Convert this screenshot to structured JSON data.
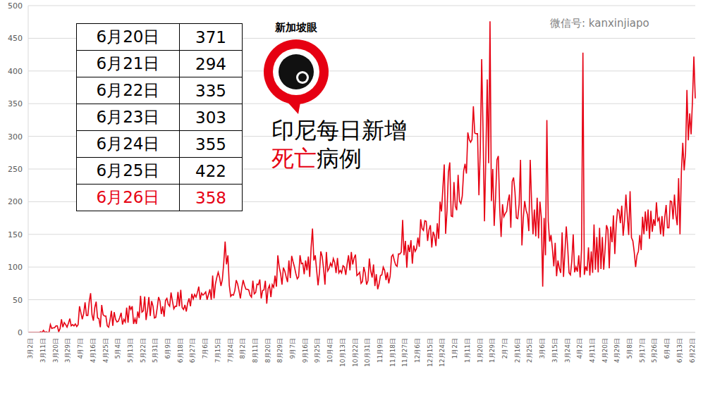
{
  "chart_data": {
    "type": "line",
    "title": [
      "印尼每日新增",
      "死亡",
      "病例"
    ],
    "logo": "新加坡眼",
    "watermark": "微信号: kanxinjiapo",
    "table": {
      "rows": [
        [
          "6月20日",
          371
        ],
        [
          "6月21日",
          294
        ],
        [
          "6月22日",
          335
        ],
        [
          "6月23日",
          303
        ],
        [
          "6月24日",
          355
        ],
        [
          "6月25日",
          422
        ],
        [
          "6月26日",
          358
        ]
      ]
    },
    "color": "#e60012",
    "grid": true,
    "ylim": [
      0,
      500
    ],
    "yticks": [
      0,
      50,
      100,
      150,
      200,
      250,
      300,
      350,
      400,
      450,
      500
    ],
    "categories": [
      "3月2日",
      null,
      null,
      null,
      null,
      null,
      null,
      null,
      null,
      "3月11日",
      null,
      null,
      null,
      null,
      null,
      null,
      null,
      null,
      "3月20日",
      null,
      null,
      null,
      null,
      null,
      null,
      null,
      null,
      "3月29日",
      null,
      null,
      null,
      null,
      null,
      null,
      null,
      null,
      "4月7日",
      null,
      null,
      null,
      null,
      null,
      null,
      null,
      null,
      "4月16日",
      null,
      null,
      null,
      null,
      null,
      null,
      null,
      null,
      "4月25日",
      null,
      null,
      null,
      null,
      null,
      null,
      null,
      null,
      "5月4日",
      null,
      null,
      null,
      null,
      null,
      null,
      null,
      null,
      "5月13日",
      null,
      null,
      null,
      null,
      null,
      null,
      null,
      null,
      "5月22日",
      null,
      null,
      null,
      null,
      null,
      null,
      null,
      null,
      "5月31日",
      null,
      null,
      null,
      null,
      null,
      null,
      null,
      null,
      "6月9日",
      null,
      null,
      null,
      null,
      null,
      null,
      null,
      null,
      "6月18日",
      null,
      null,
      null,
      null,
      null,
      null,
      null,
      null,
      "6月27日",
      null,
      null,
      null,
      null,
      null,
      null,
      null,
      null,
      "7月6日",
      null,
      null,
      null,
      null,
      null,
      null,
      null,
      null,
      "7月15日",
      null,
      null,
      null,
      null,
      null,
      null,
      null,
      null,
      "7月24日",
      null,
      null,
      null,
      null,
      null,
      null,
      null,
      null,
      "8月2日",
      null,
      null,
      null,
      null,
      null,
      null,
      null,
      null,
      "8月11日",
      null,
      null,
      null,
      null,
      null,
      null,
      null,
      null,
      "8月20日",
      null,
      null,
      null,
      null,
      null,
      null,
      null,
      null,
      "8月29日",
      null,
      null,
      null,
      null,
      null,
      null,
      null,
      null,
      "9月7日",
      null,
      null,
      null,
      null,
      null,
      null,
      null,
      null,
      "9月16日",
      null,
      null,
      null,
      null,
      null,
      null,
      null,
      null,
      "9月25日",
      null,
      null,
      null,
      null,
      null,
      null,
      null,
      null,
      "10月4日",
      null,
      null,
      null,
      null,
      null,
      null,
      null,
      null,
      "10月13日",
      null,
      null,
      null,
      null,
      null,
      null,
      null,
      null,
      "10月22日",
      null,
      null,
      null,
      null,
      null,
      null,
      null,
      null,
      "10月31日",
      null,
      null,
      null,
      null,
      null,
      null,
      null,
      null,
      "11月9日",
      null,
      null,
      null,
      null,
      null,
      null,
      null,
      null,
      "11月18日",
      null,
      null,
      null,
      null,
      null,
      null,
      null,
      null,
      "11月27日",
      null,
      null,
      null,
      null,
      null,
      null,
      null,
      null,
      "12月6日",
      null,
      null,
      null,
      null,
      null,
      null,
      null,
      null,
      "12月15日",
      null,
      null,
      null,
      null,
      null,
      null,
      null,
      null,
      "12月24日",
      null,
      null,
      null,
      null,
      null,
      null,
      null,
      null,
      "1月2日",
      null,
      null,
      null,
      null,
      null,
      null,
      null,
      null,
      "1月11日",
      null,
      null,
      null,
      null,
      null,
      null,
      null,
      null,
      "1月20日",
      null,
      null,
      null,
      null,
      null,
      null,
      null,
      null,
      "1月29日",
      null,
      null,
      null,
      null,
      null,
      null,
      null,
      null,
      "2月7日",
      null,
      null,
      null,
      null,
      null,
      null,
      null,
      null,
      "2月16日",
      null,
      null,
      null,
      null,
      null,
      null,
      null,
      null,
      "2月25日",
      null,
      null,
      null,
      null,
      null,
      null,
      null,
      null,
      "3月6日",
      null,
      null,
      null,
      null,
      null,
      null,
      null,
      null,
      "3月15日",
      null,
      null,
      null,
      null,
      null,
      null,
      null,
      null,
      "3月24日",
      null,
      null,
      null,
      null,
      null,
      null,
      null,
      null,
      "4月2日",
      null,
      null,
      null,
      null,
      null,
      null,
      null,
      null,
      "4月11日",
      null,
      null,
      null,
      null,
      null,
      null,
      null,
      null,
      "4月20日",
      null,
      null,
      null,
      null,
      null,
      null,
      null,
      null,
      "4月29日",
      null,
      null,
      null,
      null,
      null,
      null,
      null,
      null,
      "5月8日",
      null,
      null,
      null,
      null,
      null,
      null,
      null,
      null,
      "5月17日",
      null,
      null,
      null,
      null,
      null,
      null,
      null,
      null,
      "5月26日",
      null,
      null,
      null,
      null,
      null,
      null,
      null,
      null,
      "6月4日",
      null,
      null,
      null,
      null,
      null,
      null,
      null,
      null,
      "6月13日",
      null,
      null,
      null,
      null,
      null,
      null,
      null,
      null,
      "6月22日",
      null,
      null,
      null,
      null
    ],
    "values": [
      0,
      0,
      0,
      0,
      0,
      0,
      0,
      0,
      0,
      1,
      0,
      3,
      0,
      1,
      0,
      0,
      12,
      6,
      7,
      7,
      10,
      10,
      1,
      6,
      20,
      8,
      15,
      12,
      8,
      14,
      21,
      10,
      12,
      10,
      13,
      9,
      12,
      40,
      30,
      20,
      29,
      46,
      26,
      26,
      47,
      60,
      27,
      18,
      38,
      47,
      22,
      21,
      8,
      42,
      27,
      25,
      25,
      10,
      8,
      19,
      33,
      10,
      31,
      20,
      16,
      17,
      23,
      30,
      12,
      20,
      16,
      38,
      15,
      41,
      35,
      40,
      13,
      21,
      13,
      32,
      22,
      56,
      31,
      33,
      55,
      19,
      34,
      54,
      25,
      48,
      40,
      22,
      23,
      37,
      54,
      48,
      28,
      40,
      24,
      49,
      52,
      43,
      40,
      61,
      48,
      36,
      40,
      40,
      62,
      40,
      65,
      38,
      35,
      42,
      32,
      45,
      52,
      40,
      59,
      51,
      58,
      54,
      61,
      70,
      50,
      60,
      57,
      59,
      62,
      50,
      58,
      66,
      50,
      87,
      52,
      74,
      84,
      92,
      84,
      71,
      81,
      106,
      139,
      104,
      118,
      72,
      55,
      58,
      57,
      64,
      80,
      74,
      64,
      52,
      68,
      80,
      72,
      66,
      66,
      65,
      57,
      54,
      79,
      59,
      61,
      74,
      73,
      81,
      52,
      64,
      65,
      79,
      44,
      67,
      72,
      54,
      73,
      69,
      87,
      70,
      118,
      100,
      90,
      73,
      99,
      94,
      85,
      77,
      110,
      83,
      117,
      108,
      100,
      90,
      82,
      85,
      118,
      105,
      106,
      89,
      110,
      95,
      116,
      85,
      130,
      159,
      110,
      118,
      95,
      72,
      91,
      124,
      116,
      97,
      73,
      123,
      94,
      98,
      106,
      101,
      113,
      107,
      91,
      114,
      91,
      95,
      91,
      102,
      100,
      88,
      105,
      118,
      95,
      123,
      104,
      114,
      119,
      87,
      89,
      92,
      75,
      78,
      100,
      91,
      73,
      79,
      113,
      94,
      84,
      104,
      71,
      89,
      66,
      74,
      87,
      88,
      100,
      95,
      80,
      92,
      75,
      86,
      116,
      119,
      110,
      103,
      101,
      120,
      120,
      123,
      172,
      118,
      140,
      99,
      134,
      123,
      141,
      105,
      133,
      124,
      128,
      145,
      131,
      173,
      159,
      156,
      171,
      170,
      140,
      157,
      164,
      130,
      154,
      148,
      132,
      167,
      143,
      200,
      185,
      220,
      257,
      151,
      186,
      245,
      260,
      178,
      177,
      230,
      193,
      187,
      241,
      201,
      197,
      209,
      247,
      258,
      243,
      306,
      295,
      291,
      295,
      346,
      305,
      304,
      304,
      210,
      280,
      418,
      306,
      170,
      270,
      387,
      259,
      476,
      201,
      250,
      163,
      205,
      264,
      270,
      190,
      146,
      196,
      177,
      182,
      185,
      201,
      211,
      160,
      231,
      237,
      215,
      175,
      174,
      196,
      264,
      133,
      175,
      201,
      187,
      180,
      155,
      264,
      198,
      150,
      188,
      147,
      206,
      144,
      200,
      176,
      70,
      175,
      118,
      325,
      170,
      139,
      149,
      128,
      101,
      137,
      86,
      110,
      98,
      91,
      153,
      85,
      123,
      162,
      131,
      91,
      88,
      110,
      150,
      92,
      100,
      93,
      118,
      84,
      127,
      428,
      88,
      101,
      94,
      130,
      87,
      124,
      91,
      165,
      96,
      146,
      92,
      160,
      97,
      146,
      96,
      128,
      164,
      157,
      98,
      162,
      138,
      179,
      120,
      165,
      188,
      186,
      167,
      194,
      148,
      171,
      211,
      178,
      149,
      216,
      145,
      140,
      123,
      100,
      118,
      124,
      149,
      126,
      177,
      150,
      185,
      155,
      188,
      143,
      186,
      154,
      173,
      163,
      199,
      171,
      175,
      150,
      178,
      147,
      176,
      195,
      160,
      160,
      201,
      200,
      173,
      211,
      180,
      164,
      236,
      150,
      246,
      290,
      248,
      275,
      371,
      294,
      335,
      303,
      355,
      422,
      358
    ]
  }
}
